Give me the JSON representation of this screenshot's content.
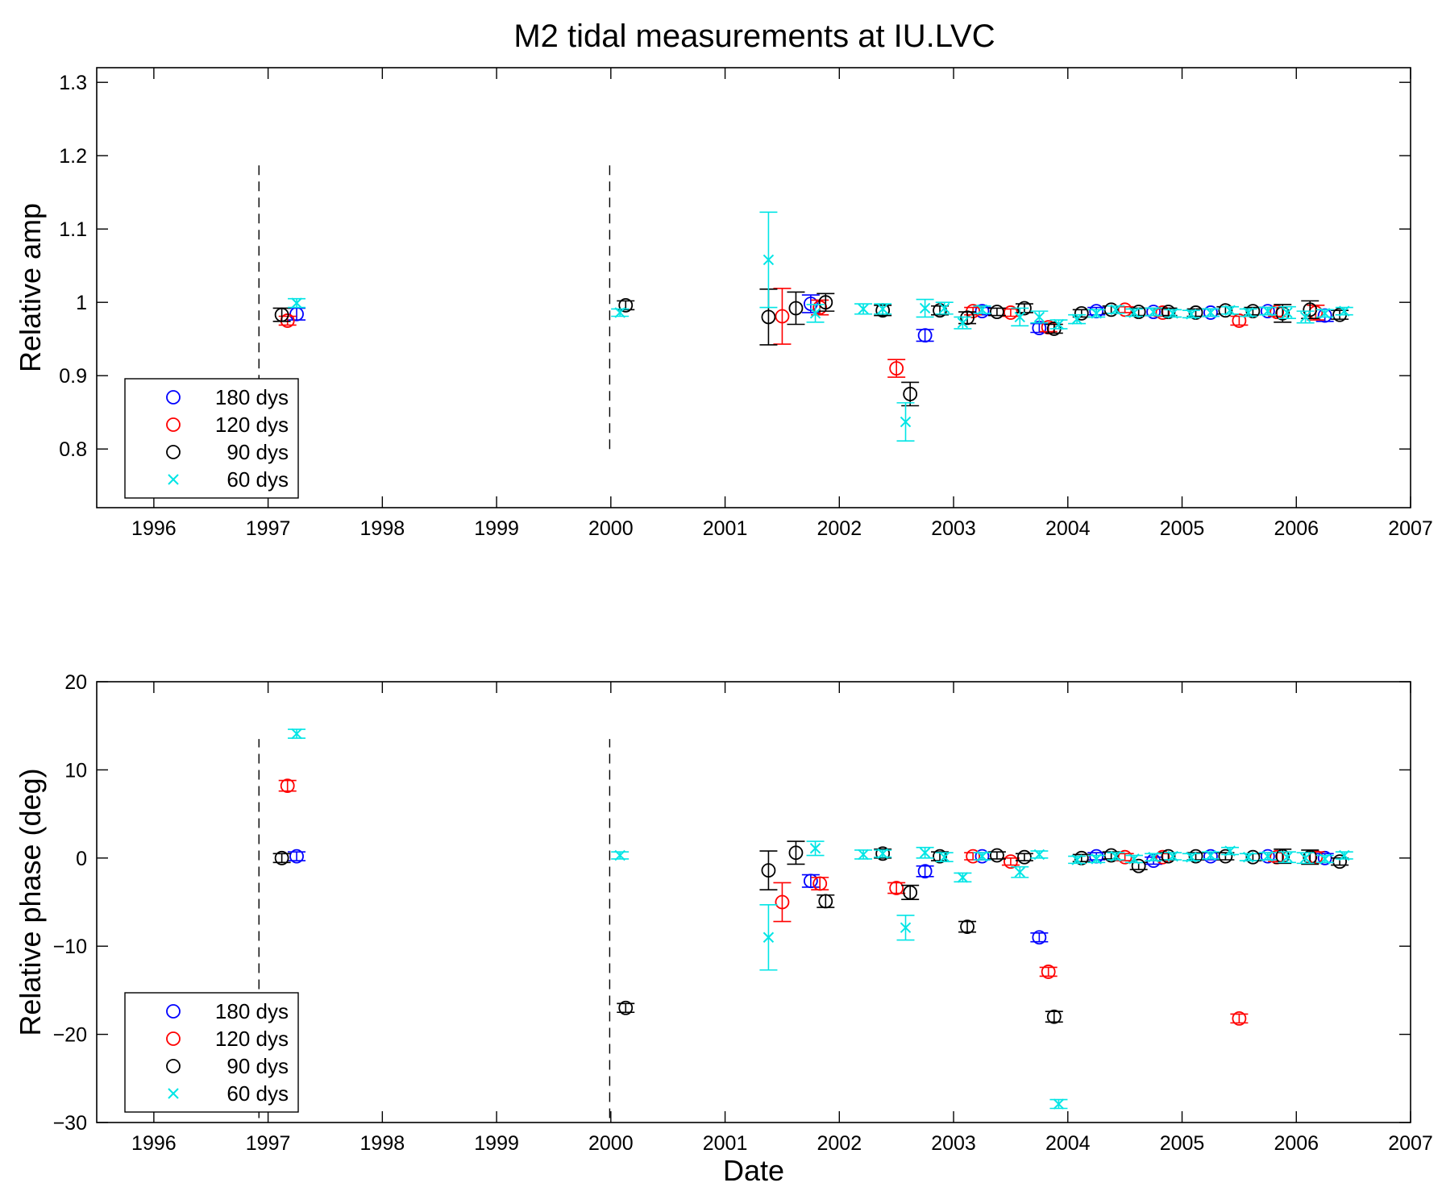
{
  "title": "M2 tidal measurements at IU.LVC",
  "colors": {
    "180 dys": "#0000ff",
    "120 dys": "#ff0000",
    "90 dys": "#000000",
    "60 dys": "#00e5e5"
  },
  "chart_data": [
    {
      "type": "scatter",
      "subplot": "top",
      "xlabel": "",
      "ylabel": "Relative amp",
      "xlim": [
        1995.5,
        2007
      ],
      "ylim": [
        0.72,
        1.32
      ],
      "xticks": [
        1996,
        1997,
        1998,
        1999,
        2000,
        2001,
        2002,
        2003,
        2004,
        2005,
        2006,
        2007
      ],
      "yticks": [
        0.8,
        0.9,
        1,
        1.1,
        1.2,
        1.3
      ],
      "ytick_labels": [
        "0.8",
        "0.9",
        "1",
        "1.1",
        "1.2",
        "1.3"
      ],
      "vlines": [
        1996.92,
        1999.99
      ],
      "vline_range": [
        0.8,
        1.19
      ],
      "legend": {
        "placement": "bottom-left",
        "entries": [
          "180 dys",
          "120 dys",
          "90 dys",
          "60 dys"
        ]
      },
      "series": [
        {
          "name": "180 dys",
          "marker": "o",
          "points": [
            [
              1997.25,
              0.984,
              0.008
            ],
            [
              2001.75,
              0.998,
              0.012
            ],
            [
              2002.75,
              0.955,
              0.008
            ],
            [
              2003.25,
              0.988,
              0.005
            ],
            [
              2003.75,
              0.965,
              0.006
            ],
            [
              2004.25,
              0.988,
              0.005
            ],
            [
              2004.75,
              0.987,
              0.005
            ],
            [
              2005.25,
              0.986,
              0.005
            ],
            [
              2005.75,
              0.988,
              0.005
            ],
            [
              2006.25,
              0.982,
              0.008
            ]
          ]
        },
        {
          "name": "120 dys",
          "marker": "o",
          "points": [
            [
              1997.17,
              0.975,
              0.006
            ],
            [
              2001.5,
              0.981,
              0.038
            ],
            [
              2001.83,
              0.993,
              0.01
            ],
            [
              2002.5,
              0.91,
              0.012
            ],
            [
              2003.17,
              0.988,
              0.005
            ],
            [
              2003.5,
              0.986,
              0.005
            ],
            [
              2003.83,
              0.966,
              0.006
            ],
            [
              2004.5,
              0.99,
              0.004
            ],
            [
              2004.83,
              0.986,
              0.005
            ],
            [
              2005.5,
              0.975,
              0.006
            ],
            [
              2005.83,
              0.987,
              0.006
            ],
            [
              2006.17,
              0.986,
              0.01
            ]
          ]
        },
        {
          "name": "90 dys",
          "marker": "o",
          "points": [
            [
              1997.12,
              0.983,
              0.009
            ],
            [
              2000.13,
              0.996,
              0.006
            ],
            [
              2001.38,
              0.98,
              0.038
            ],
            [
              2001.62,
              0.992,
              0.022
            ],
            [
              2001.88,
              1.0,
              0.012
            ],
            [
              2002.38,
              0.989,
              0.007
            ],
            [
              2002.62,
              0.875,
              0.016
            ],
            [
              2002.88,
              0.989,
              0.006
            ],
            [
              2003.12,
              0.979,
              0.008
            ],
            [
              2003.38,
              0.987,
              0.005
            ],
            [
              2003.62,
              0.992,
              0.006
            ],
            [
              2003.88,
              0.964,
              0.006
            ],
            [
              2004.12,
              0.985,
              0.005
            ],
            [
              2004.38,
              0.99,
              0.005
            ],
            [
              2004.62,
              0.987,
              0.005
            ],
            [
              2004.88,
              0.987,
              0.005
            ],
            [
              2005.12,
              0.986,
              0.005
            ],
            [
              2005.38,
              0.989,
              0.005
            ],
            [
              2005.62,
              0.988,
              0.005
            ],
            [
              2005.88,
              0.985,
              0.012
            ],
            [
              2006.12,
              0.99,
              0.012
            ],
            [
              2006.38,
              0.983,
              0.006
            ]
          ]
        },
        {
          "name": "60 dys",
          "marker": "x",
          "points": [
            [
              1997.25,
              0.999,
              0.006
            ],
            [
              2000.08,
              0.986,
              0.005
            ],
            [
              2001.38,
              1.058,
              0.065
            ],
            [
              2001.79,
              0.985,
              0.012
            ],
            [
              2002.21,
              0.991,
              0.007
            ],
            [
              2002.38,
              0.991,
              0.007
            ],
            [
              2002.58,
              0.837,
              0.026
            ],
            [
              2002.75,
              0.992,
              0.012
            ],
            [
              2002.92,
              0.992,
              0.008
            ],
            [
              2003.08,
              0.972,
              0.008
            ],
            [
              2003.25,
              0.99,
              0.005
            ],
            [
              2003.58,
              0.98,
              0.012
            ],
            [
              2003.75,
              0.98,
              0.008
            ],
            [
              2003.92,
              0.97,
              0.006
            ],
            [
              2004.08,
              0.977,
              0.006
            ],
            [
              2004.25,
              0.985,
              0.005
            ],
            [
              2004.42,
              0.99,
              0.005
            ],
            [
              2004.58,
              0.986,
              0.005
            ],
            [
              2004.75,
              0.987,
              0.005
            ],
            [
              2004.92,
              0.985,
              0.005
            ],
            [
              2005.08,
              0.984,
              0.005
            ],
            [
              2005.25,
              0.986,
              0.005
            ],
            [
              2005.42,
              0.989,
              0.005
            ],
            [
              2005.58,
              0.986,
              0.005
            ],
            [
              2005.75,
              0.988,
              0.005
            ],
            [
              2005.92,
              0.986,
              0.008
            ],
            [
              2006.08,
              0.98,
              0.008
            ],
            [
              2006.25,
              0.985,
              0.005
            ],
            [
              2006.42,
              0.988,
              0.005
            ]
          ]
        }
      ]
    },
    {
      "type": "scatter",
      "subplot": "bottom",
      "xlabel": "Date",
      "ylabel": "Relative phase (deg)",
      "xlim": [
        1995.5,
        2007
      ],
      "ylim": [
        -30,
        20
      ],
      "xticks": [
        1996,
        1997,
        1998,
        1999,
        2000,
        2001,
        2002,
        2003,
        2004,
        2005,
        2006,
        2007
      ],
      "yticks": [
        -30,
        -20,
        -10,
        0,
        10,
        20
      ],
      "ytick_labels": [
        "−30",
        "−20",
        "−10",
        "0",
        "10",
        "20"
      ],
      "vlines": [
        1996.92,
        1999.99
      ],
      "vline_range": [
        -29.5,
        13.5
      ],
      "legend": {
        "placement": "bottom-left",
        "entries": [
          "180 dys",
          "120 dys",
          "90 dys",
          "60 dys"
        ]
      },
      "series": [
        {
          "name": "180 dys",
          "marker": "o",
          "points": [
            [
              1997.25,
              0.2,
              0.5
            ],
            [
              2001.75,
              -2.6,
              0.7
            ],
            [
              2002.75,
              -1.5,
              0.6
            ],
            [
              2003.25,
              0.2,
              0.4
            ],
            [
              2003.75,
              -9.0,
              0.5
            ],
            [
              2004.25,
              0.2,
              0.4
            ],
            [
              2004.75,
              -0.3,
              0.4
            ],
            [
              2005.25,
              0.2,
              0.4
            ],
            [
              2005.75,
              0.2,
              0.4
            ],
            [
              2006.25,
              0.0,
              0.5
            ]
          ]
        },
        {
          "name": "120 dys",
          "marker": "o",
          "points": [
            [
              1997.17,
              8.2,
              0.6
            ],
            [
              2001.5,
              -5.0,
              2.2
            ],
            [
              2001.83,
              -2.9,
              0.7
            ],
            [
              2002.5,
              -3.4,
              0.6
            ],
            [
              2003.17,
              0.2,
              0.4
            ],
            [
              2003.5,
              -0.4,
              0.4
            ],
            [
              2003.83,
              -12.9,
              0.5
            ],
            [
              2004.5,
              0.1,
              0.4
            ],
            [
              2004.83,
              0.1,
              0.4
            ],
            [
              2005.5,
              -18.2,
              0.5
            ],
            [
              2005.83,
              0.1,
              0.5
            ],
            [
              2006.17,
              0.1,
              0.6
            ]
          ]
        },
        {
          "name": "90 dys",
          "marker": "o",
          "points": [
            [
              1997.12,
              0.0,
              0.5
            ],
            [
              2000.13,
              -17.0,
              0.5
            ],
            [
              2001.38,
              -1.4,
              2.2
            ],
            [
              2001.62,
              0.6,
              1.3
            ],
            [
              2001.88,
              -4.9,
              0.7
            ],
            [
              2002.38,
              0.5,
              0.5
            ],
            [
              2002.62,
              -3.9,
              0.8
            ],
            [
              2002.88,
              0.2,
              0.5
            ],
            [
              2003.12,
              -7.8,
              0.6
            ],
            [
              2003.38,
              0.3,
              0.4
            ],
            [
              2003.62,
              0.1,
              0.4
            ],
            [
              2003.88,
              -18.0,
              0.6
            ],
            [
              2004.12,
              0.0,
              0.4
            ],
            [
              2004.38,
              0.3,
              0.4
            ],
            [
              2004.62,
              -0.9,
              0.4
            ],
            [
              2004.88,
              0.2,
              0.4
            ],
            [
              2005.12,
              0.2,
              0.4
            ],
            [
              2005.38,
              0.2,
              0.4
            ],
            [
              2005.62,
              0.1,
              0.4
            ],
            [
              2005.88,
              0.2,
              0.8
            ],
            [
              2006.12,
              0.1,
              0.8
            ],
            [
              2006.38,
              -0.4,
              0.4
            ]
          ]
        },
        {
          "name": "60 dys",
          "marker": "x",
          "points": [
            [
              1997.25,
              14.1,
              0.5
            ],
            [
              2000.08,
              0.3,
              0.4
            ],
            [
              2001.38,
              -9.0,
              3.7
            ],
            [
              2001.79,
              1.1,
              0.8
            ],
            [
              2002.21,
              0.4,
              0.5
            ],
            [
              2002.38,
              0.5,
              0.4
            ],
            [
              2002.58,
              -7.9,
              1.4
            ],
            [
              2002.75,
              0.6,
              0.6
            ],
            [
              2002.92,
              0.1,
              0.5
            ],
            [
              2003.08,
              -2.2,
              0.5
            ],
            [
              2003.25,
              0.2,
              0.4
            ],
            [
              2003.58,
              -1.6,
              0.6
            ],
            [
              2003.75,
              0.4,
              0.4
            ],
            [
              2003.92,
              -27.9,
              0.5
            ],
            [
              2004.08,
              -0.2,
              0.4
            ],
            [
              2004.25,
              -0.1,
              0.4
            ],
            [
              2004.42,
              0.2,
              0.4
            ],
            [
              2004.58,
              -0.1,
              0.4
            ],
            [
              2004.75,
              0.1,
              0.4
            ],
            [
              2004.92,
              0.2,
              0.4
            ],
            [
              2005.08,
              0.1,
              0.4
            ],
            [
              2005.25,
              0.3,
              0.4
            ],
            [
              2005.42,
              0.8,
              0.4
            ],
            [
              2005.58,
              0.1,
              0.4
            ],
            [
              2005.75,
              0.2,
              0.4
            ],
            [
              2005.92,
              0.1,
              0.6
            ],
            [
              2006.08,
              0.0,
              0.6
            ],
            [
              2006.25,
              -0.1,
              0.4
            ],
            [
              2006.42,
              0.3,
              0.4
            ]
          ]
        }
      ]
    }
  ]
}
